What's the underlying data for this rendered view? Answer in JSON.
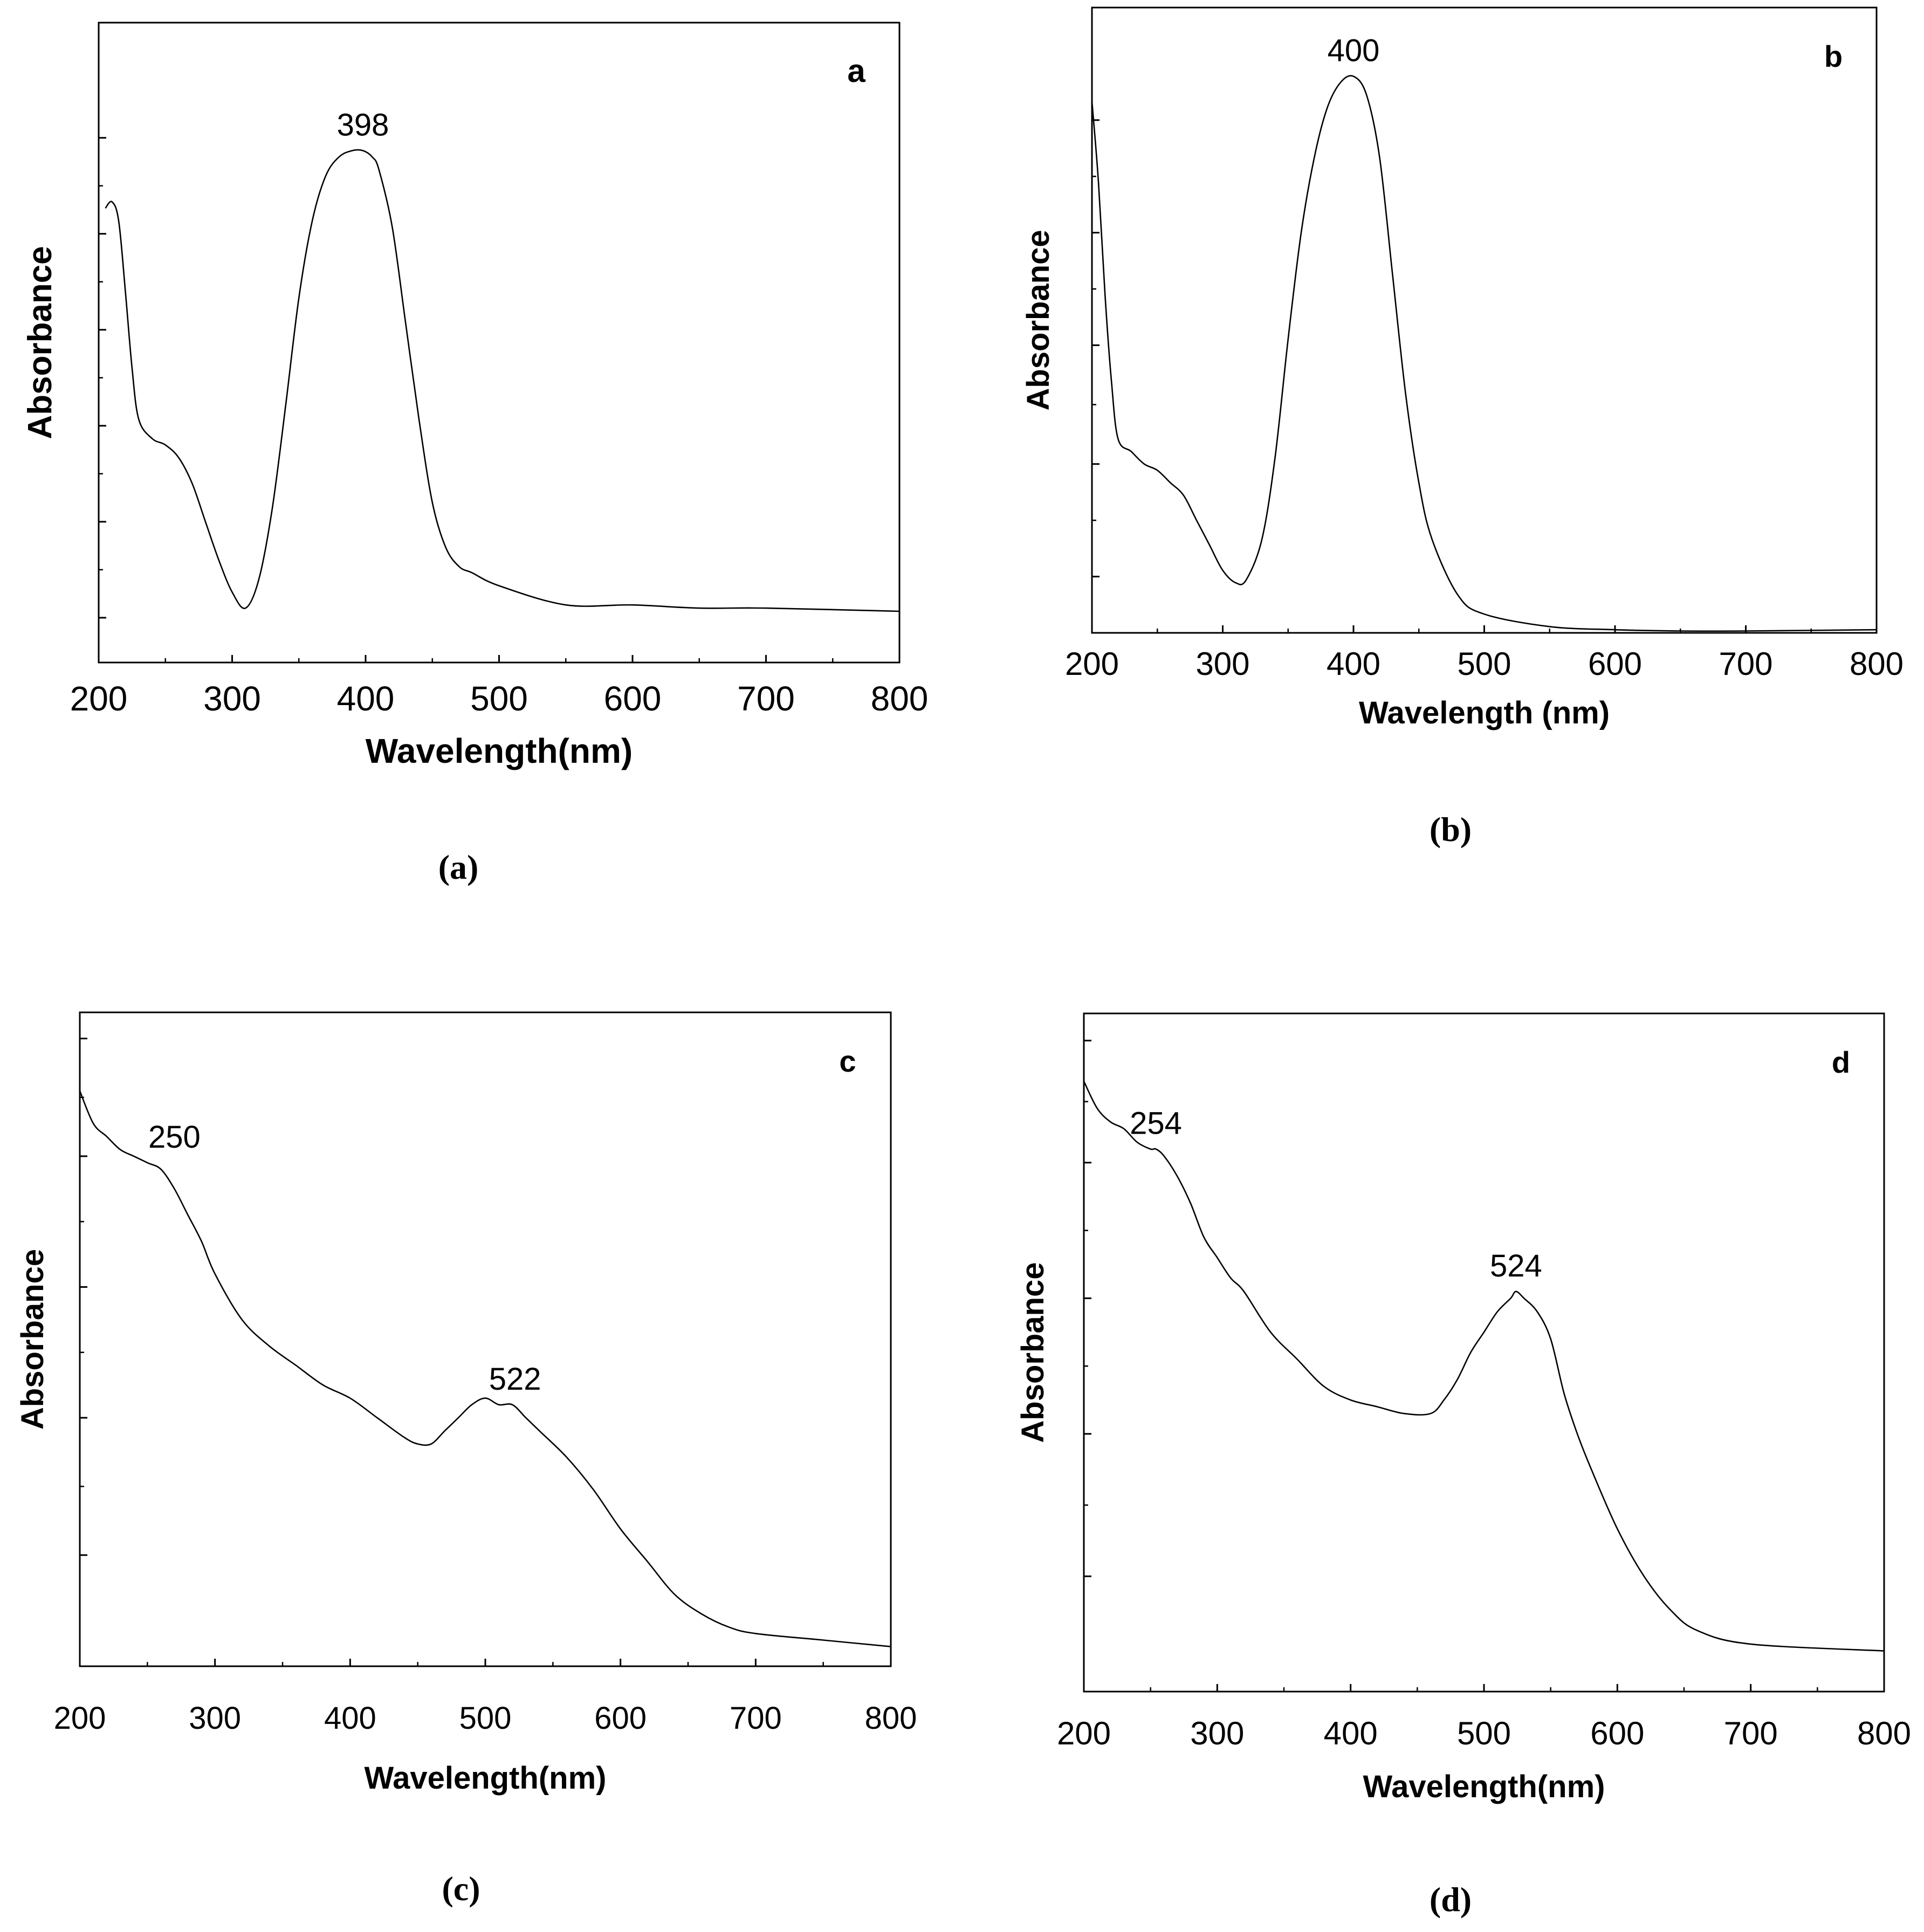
{
  "figure": {
    "caption_a": "(a)",
    "caption_b": "(b)",
    "caption_c": "(c)",
    "caption_d": "(d)"
  },
  "chart_data": [
    {
      "type": "line",
      "panel_letter": "a",
      "caption": "(a)",
      "xlabel": "Wavelength(nm)",
      "ylabel": "Absorbance",
      "xlim": [
        200,
        800
      ],
      "ylim": [
        0,
        1
      ],
      "xticks": [
        "200",
        "300",
        "400",
        "500",
        "600",
        "700",
        "800"
      ],
      "yticks_unlabeled": [
        0.07,
        0.22,
        0.37,
        0.52,
        0.67,
        0.82
      ],
      "x": [
        205,
        210,
        215,
        220,
        225,
        230,
        240,
        250,
        260,
        270,
        280,
        290,
        300,
        310,
        320,
        330,
        340,
        350,
        360,
        370,
        380,
        390,
        398,
        405,
        410,
        420,
        430,
        440,
        450,
        460,
        470,
        480,
        500,
        550,
        600,
        650,
        700,
        800
      ],
      "y": [
        0.71,
        0.72,
        0.69,
        0.58,
        0.46,
        0.38,
        0.35,
        0.34,
        0.32,
        0.28,
        0.22,
        0.16,
        0.11,
        0.085,
        0.13,
        0.24,
        0.4,
        0.57,
        0.69,
        0.76,
        0.79,
        0.8,
        0.8,
        0.79,
        0.77,
        0.68,
        0.53,
        0.38,
        0.25,
        0.18,
        0.15,
        0.14,
        0.12,
        0.09,
        0.09,
        0.085,
        0.085,
        0.08
      ],
      "annotations": [
        {
          "text": "398",
          "x": 398,
          "y": 0.8
        }
      ]
    },
    {
      "type": "line",
      "panel_letter": "b",
      "caption": "(b)",
      "xlabel": "Wavelength (nm)",
      "ylabel": "Absorbance",
      "xlim": [
        200,
        800
      ],
      "ylim": [
        0,
        1
      ],
      "xticks": [
        "200",
        "300",
        "400",
        "500",
        "600",
        "700",
        "800"
      ],
      "yticks_unlabeled": [
        0.09,
        0.27,
        0.46,
        0.64,
        0.82
      ],
      "x": [
        200,
        205,
        210,
        215,
        220,
        230,
        240,
        250,
        260,
        270,
        280,
        290,
        300,
        310,
        318,
        330,
        340,
        350,
        360,
        370,
        380,
        390,
        400,
        410,
        420,
        430,
        440,
        450,
        460,
        480,
        500,
        550,
        600,
        650,
        700,
        800
      ],
      "y": [
        0.85,
        0.72,
        0.54,
        0.4,
        0.31,
        0.29,
        0.27,
        0.26,
        0.24,
        0.22,
        0.18,
        0.14,
        0.1,
        0.08,
        0.085,
        0.15,
        0.28,
        0.47,
        0.64,
        0.76,
        0.84,
        0.88,
        0.89,
        0.86,
        0.76,
        0.57,
        0.38,
        0.24,
        0.15,
        0.06,
        0.03,
        0.01,
        0.005,
        0.003,
        0.003,
        0.005
      ],
      "annotations": [
        {
          "text": "400",
          "x": 400,
          "y": 0.89
        }
      ]
    },
    {
      "type": "line",
      "panel_letter": "c",
      "caption": "(c)",
      "xlabel": "Wavelength(nm)",
      "ylabel": "Absorbance",
      "xlim": [
        200,
        800
      ],
      "ylim": [
        0,
        1
      ],
      "xticks": [
        "200",
        "300",
        "400",
        "500",
        "600",
        "700",
        "800"
      ],
      "yticks_unlabeled": [
        0.17,
        0.38,
        0.58,
        0.78,
        0.96
      ],
      "x": [
        200,
        210,
        220,
        230,
        240,
        250,
        260,
        270,
        280,
        290,
        300,
        320,
        340,
        360,
        380,
        400,
        420,
        440,
        450,
        460,
        470,
        480,
        490,
        500,
        510,
        520,
        530,
        540,
        560,
        580,
        600,
        620,
        640,
        660,
        680,
        700,
        750,
        800
      ],
      "y": [
        0.88,
        0.83,
        0.81,
        0.79,
        0.78,
        0.77,
        0.76,
        0.73,
        0.69,
        0.65,
        0.6,
        0.53,
        0.49,
        0.46,
        0.43,
        0.41,
        0.38,
        0.35,
        0.34,
        0.34,
        0.36,
        0.38,
        0.4,
        0.41,
        0.4,
        0.4,
        0.38,
        0.36,
        0.32,
        0.27,
        0.21,
        0.16,
        0.11,
        0.08,
        0.06,
        0.05,
        0.04,
        0.03
      ],
      "annotations": [
        {
          "text": "250",
          "x": 250,
          "y": 0.77
        },
        {
          "text": "522",
          "x": 522,
          "y": 0.4
        }
      ]
    },
    {
      "type": "line",
      "panel_letter": "d",
      "caption": "(d)",
      "xlabel": "Wavelength(nm)",
      "ylabel": "Absorbance",
      "xlim": [
        200,
        800
      ],
      "ylim": [
        0,
        1
      ],
      "xticks": [
        "200",
        "300",
        "400",
        "500",
        "600",
        "700",
        "800"
      ],
      "yticks_unlabeled": [
        0.17,
        0.38,
        0.58,
        0.78,
        0.96
      ],
      "x": [
        200,
        210,
        220,
        230,
        240,
        250,
        254,
        260,
        270,
        280,
        290,
        300,
        310,
        320,
        340,
        360,
        380,
        400,
        420,
        440,
        460,
        470,
        480,
        490,
        500,
        510,
        520,
        524,
        530,
        540,
        550,
        560,
        570,
        580,
        600,
        620,
        640,
        660,
        700,
        800
      ],
      "y": [
        0.9,
        0.86,
        0.84,
        0.83,
        0.81,
        0.8,
        0.8,
        0.79,
        0.76,
        0.72,
        0.67,
        0.64,
        0.61,
        0.59,
        0.53,
        0.49,
        0.45,
        0.43,
        0.42,
        0.41,
        0.41,
        0.43,
        0.46,
        0.5,
        0.53,
        0.56,
        0.58,
        0.59,
        0.58,
        0.56,
        0.52,
        0.44,
        0.38,
        0.33,
        0.24,
        0.17,
        0.12,
        0.09,
        0.07,
        0.06
      ],
      "annotations": [
        {
          "text": "254",
          "x": 254,
          "y": 0.8
        },
        {
          "text": "524",
          "x": 524,
          "y": 0.59
        }
      ]
    }
  ]
}
